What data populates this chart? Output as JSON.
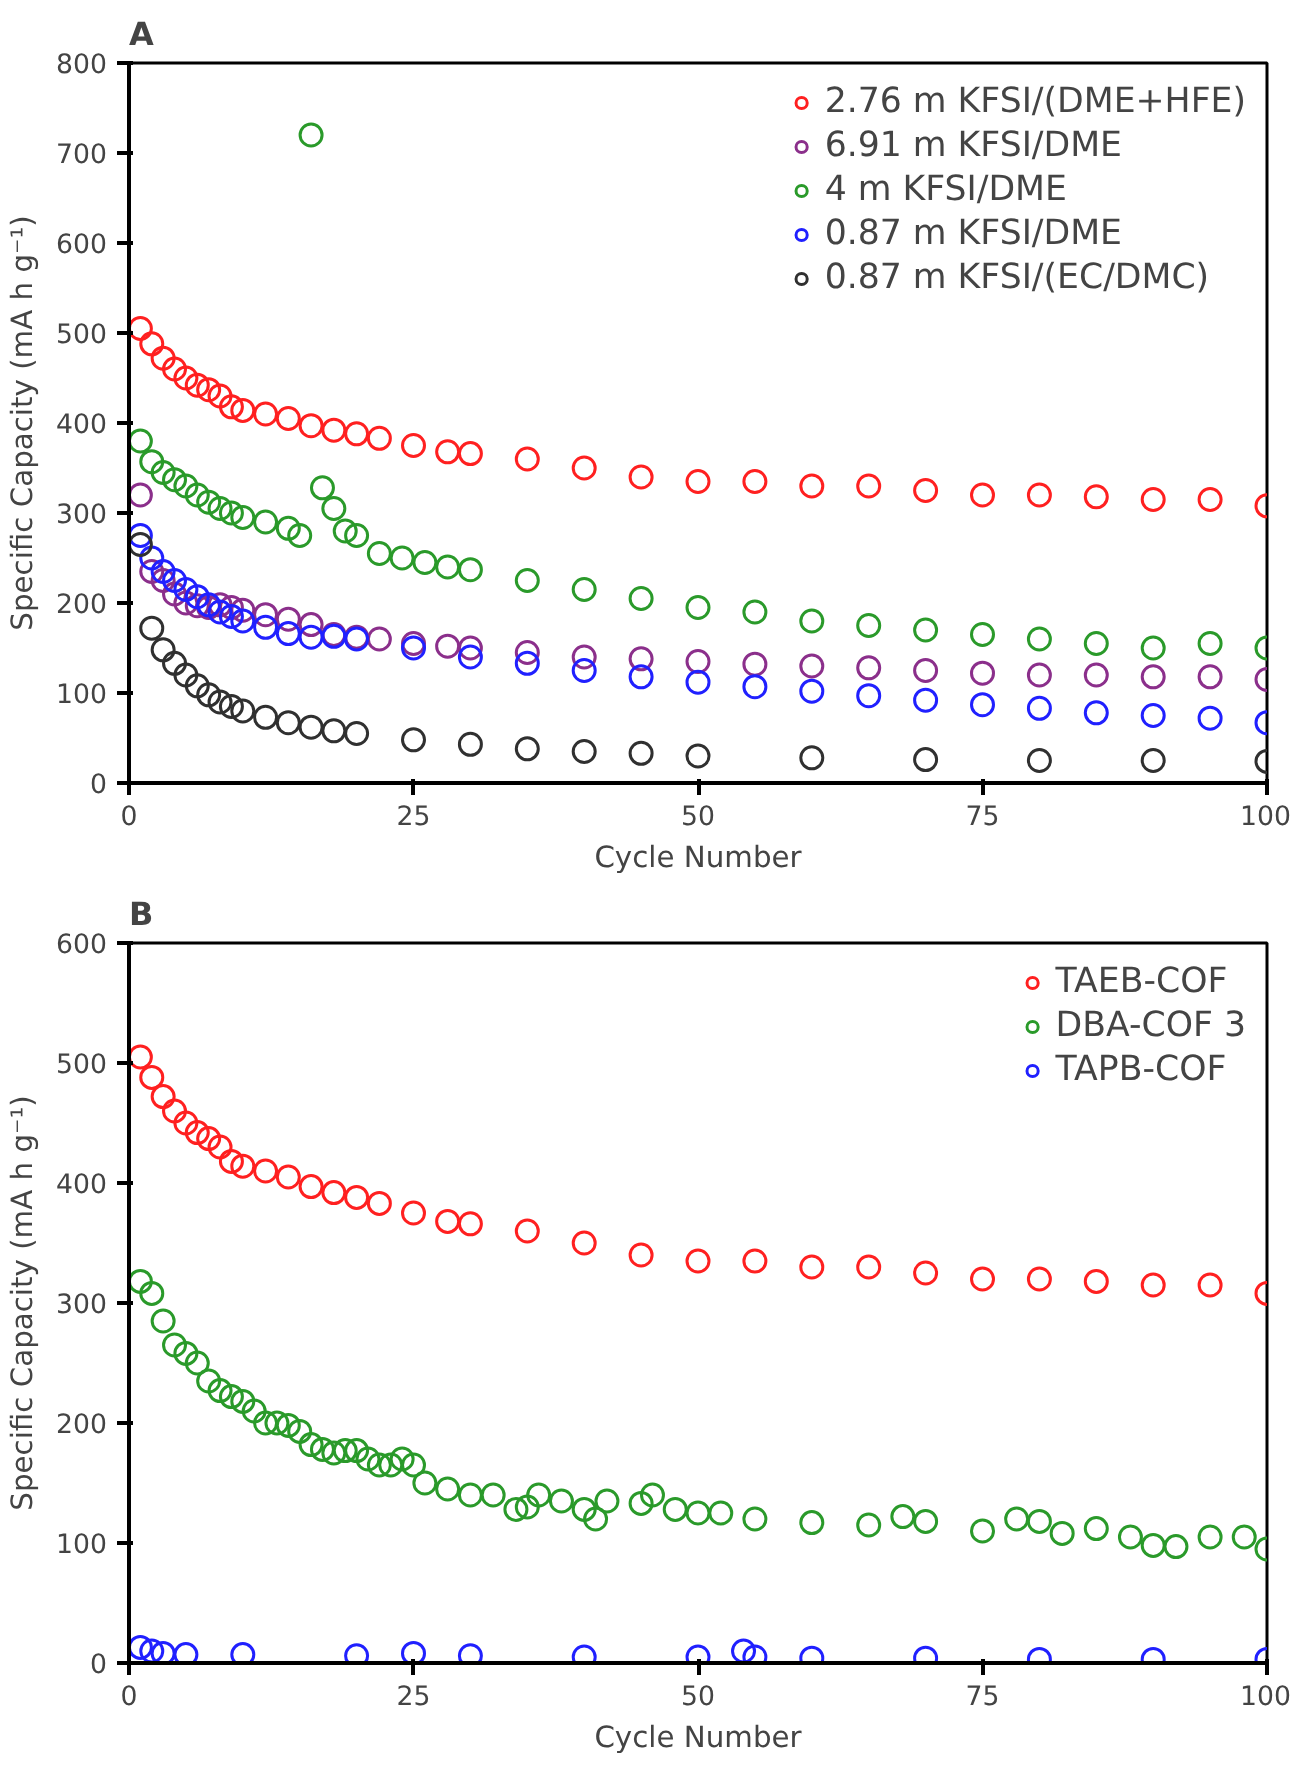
{
  "chart_data": [
    {
      "type": "scatter",
      "title": "A",
      "xlabel": "Cycle Number",
      "ylabel": "Specific Capacity (mA h g⁻¹)",
      "xlim": [
        0,
        100
      ],
      "xticks": [
        0,
        25,
        50,
        75,
        100
      ],
      "ylim": [
        0,
        800
      ],
      "yticks": [
        0,
        100,
        200,
        300,
        400,
        500,
        600,
        700,
        800
      ],
      "grid": false,
      "legend": "top right",
      "marker": "circle",
      "series": [
        {
          "name": "2.76 m KFSI/(DME+HFE)",
          "color": "#ff2020",
          "x": [
            1,
            2,
            3,
            4,
            5,
            6,
            7,
            8,
            9,
            10,
            12,
            14,
            16,
            18,
            20,
            22,
            25,
            28,
            30,
            35,
            40,
            45,
            50,
            55,
            60,
            65,
            70,
            75,
            80,
            85,
            90,
            95,
            100
          ],
          "values": [
            505,
            488,
            472,
            460,
            450,
            442,
            437,
            430,
            418,
            414,
            410,
            405,
            397,
            392,
            388,
            383,
            375,
            368,
            366,
            360,
            350,
            340,
            335,
            335,
            330,
            330,
            325,
            320,
            320,
            318,
            315,
            315,
            308
          ]
        },
        {
          "name": "6.91 m KFSI/DME",
          "color": "#8b2f8b",
          "x": [
            1,
            2,
            3,
            4,
            5,
            6,
            7,
            8,
            9,
            10,
            12,
            14,
            16,
            18,
            20,
            22,
            25,
            28,
            30,
            35,
            40,
            45,
            50,
            55,
            60,
            65,
            70,
            75,
            80,
            85,
            90,
            95,
            100
          ],
          "values": [
            320,
            235,
            225,
            210,
            200,
            197,
            195,
            198,
            195,
            192,
            187,
            182,
            176,
            165,
            162,
            160,
            155,
            152,
            150,
            145,
            140,
            138,
            135,
            132,
            130,
            128,
            125,
            122,
            120,
            120,
            118,
            118,
            115
          ]
        },
        {
          "name": "4 m KFSI/DME",
          "color": "#2a9a2a",
          "x": [
            1,
            2,
            3,
            4,
            5,
            6,
            7,
            8,
            9,
            10,
            12,
            14,
            15,
            16,
            17,
            18,
            19,
            20,
            22,
            24,
            26,
            28,
            30,
            35,
            40,
            45,
            50,
            55,
            60,
            65,
            70,
            75,
            80,
            85,
            90,
            95,
            100
          ],
          "values": [
            380,
            357,
            345,
            337,
            330,
            320,
            312,
            305,
            300,
            295,
            290,
            283,
            275,
            720,
            328,
            305,
            280,
            275,
            255,
            250,
            245,
            240,
            237,
            225,
            215,
            205,
            195,
            190,
            180,
            175,
            170,
            165,
            160,
            155,
            150,
            155,
            150
          ]
        },
        {
          "name": "0.87 m KFSI/DME",
          "color": "#2020ff",
          "x": [
            1,
            2,
            3,
            4,
            5,
            6,
            7,
            8,
            9,
            10,
            12,
            14,
            16,
            18,
            20,
            25,
            30,
            35,
            40,
            45,
            50,
            55,
            60,
            65,
            70,
            75,
            80,
            85,
            90,
            95,
            100
          ],
          "values": [
            275,
            250,
            235,
            225,
            215,
            207,
            198,
            190,
            185,
            180,
            173,
            166,
            162,
            163,
            160,
            150,
            140,
            133,
            125,
            118,
            112,
            107,
            102,
            97,
            92,
            87,
            83,
            78,
            75,
            72,
            67
          ]
        },
        {
          "name": "0.87 m KFSI/(EC/DMC)",
          "color": "#303030",
          "x": [
            1,
            2,
            3,
            4,
            5,
            6,
            7,
            8,
            9,
            10,
            12,
            14,
            16,
            18,
            20,
            25,
            30,
            35,
            40,
            45,
            50,
            60,
            70,
            80,
            90,
            100
          ],
          "values": [
            265,
            172,
            148,
            133,
            120,
            108,
            98,
            90,
            85,
            80,
            73,
            67,
            62,
            58,
            55,
            48,
            43,
            38,
            35,
            33,
            30,
            28,
            26,
            25,
            25,
            24
          ]
        }
      ]
    },
    {
      "type": "scatter",
      "title": "B",
      "xlabel": "Cycle Number",
      "ylabel": "Specific Capacity (mA h g⁻¹)",
      "xlim": [
        0,
        100
      ],
      "xticks": [
        0,
        25,
        50,
        75,
        100
      ],
      "ylim": [
        0,
        600
      ],
      "yticks": [
        0,
        100,
        200,
        300,
        400,
        500,
        600
      ],
      "grid": false,
      "legend": "top right",
      "marker": "circle",
      "series": [
        {
          "name": "TAEB-COF",
          "color": "#ff2020",
          "x": [
            1,
            2,
            3,
            4,
            5,
            6,
            7,
            8,
            9,
            10,
            12,
            14,
            16,
            18,
            20,
            22,
            25,
            28,
            30,
            35,
            40,
            45,
            50,
            55,
            60,
            65,
            70,
            75,
            80,
            85,
            90,
            95,
            100
          ],
          "values": [
            505,
            488,
            472,
            460,
            450,
            442,
            437,
            430,
            418,
            414,
            410,
            405,
            397,
            392,
            388,
            383,
            375,
            368,
            366,
            360,
            350,
            340,
            335,
            335,
            330,
            330,
            325,
            320,
            320,
            318,
            315,
            315,
            308
          ]
        },
        {
          "name": "DBA-COF 3",
          "color": "#2a9a2a",
          "x": [
            1,
            2,
            3,
            4,
            5,
            6,
            7,
            8,
            9,
            10,
            11,
            12,
            13,
            14,
            15,
            16,
            17,
            18,
            19,
            20,
            21,
            22,
            23,
            24,
            25,
            26,
            28,
            30,
            32,
            34,
            35,
            36,
            38,
            40,
            41,
            42,
            45,
            46,
            48,
            50,
            52,
            55,
            60,
            65,
            68,
            70,
            75,
            78,
            80,
            82,
            85,
            88,
            90,
            92,
            95,
            98,
            100
          ],
          "values": [
            318,
            308,
            285,
            265,
            258,
            250,
            235,
            227,
            222,
            218,
            210,
            200,
            200,
            198,
            193,
            182,
            178,
            175,
            177,
            177,
            170,
            165,
            165,
            170,
            165,
            150,
            145,
            140,
            140,
            128,
            130,
            140,
            135,
            128,
            120,
            135,
            133,
            140,
            128,
            125,
            125,
            120,
            117,
            115,
            122,
            118,
            110,
            120,
            118,
            108,
            112,
            105,
            98,
            97,
            105,
            105,
            95
          ]
        },
        {
          "name": "TAPB-COF",
          "color": "#2020ff",
          "x": [
            1,
            2,
            3,
            5,
            10,
            20,
            25,
            30,
            40,
            50,
            54,
            55,
            60,
            70,
            80,
            90,
            100
          ],
          "values": [
            13,
            10,
            8,
            7,
            7,
            6,
            8,
            6,
            5,
            5,
            10,
            5,
            4,
            4,
            3,
            3,
            3
          ]
        }
      ]
    }
  ]
}
